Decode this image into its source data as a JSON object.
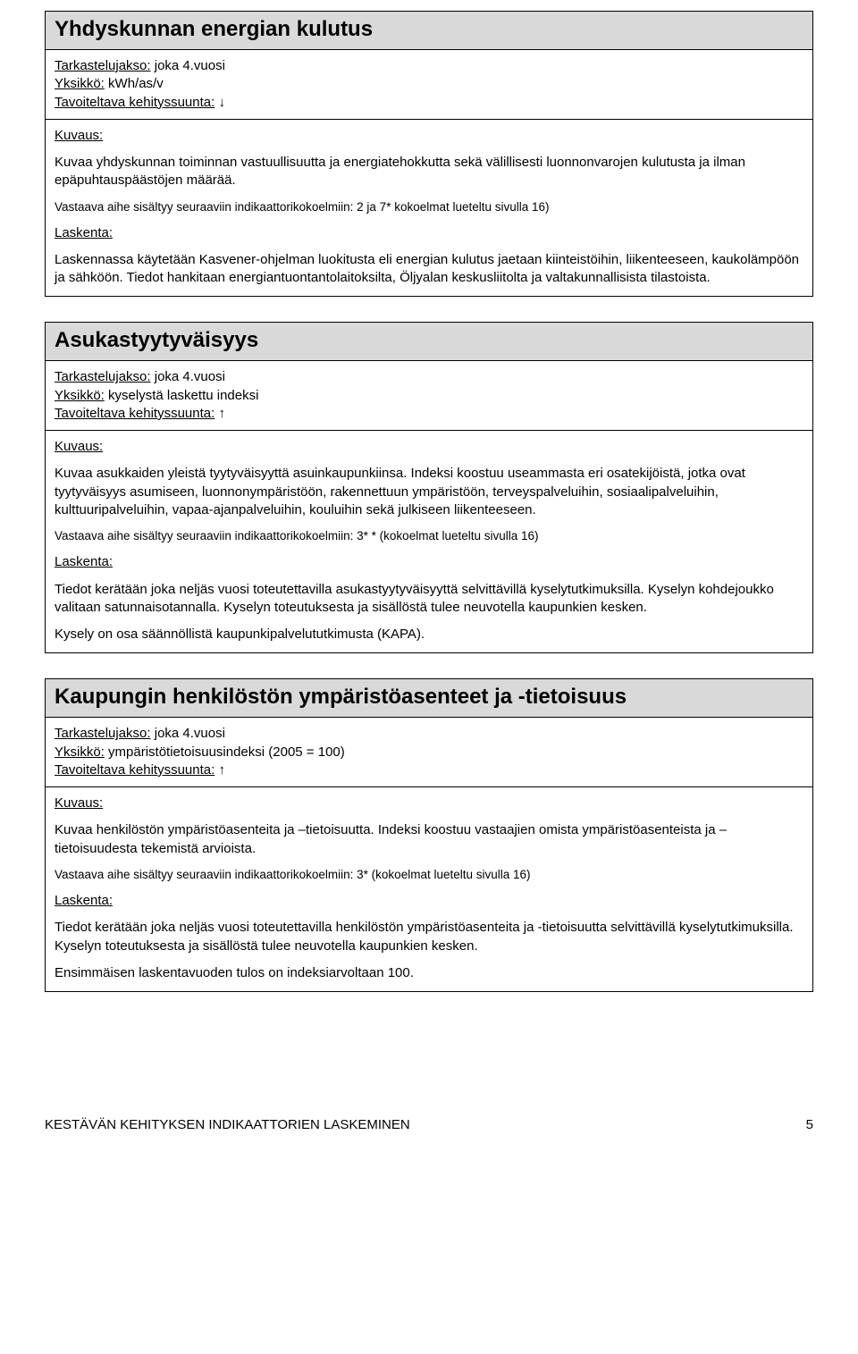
{
  "cards": [
    {
      "title": "Yhdyskunnan energian kulutus",
      "meta": {
        "period_label": "Tarkastelujakso:",
        "period_value": "joka 4.vuosi",
        "unit_label": "Yksikkö:",
        "unit_value": "kWh/as/v",
        "trend_label": "Tavoiteltava kehityssuunta:",
        "trend_arrow": "↓"
      },
      "body": {
        "desc_label": "Kuvaus:",
        "desc_text": "Kuvaa yhdyskunnan toiminnan vastuullisuutta ja energiatehokkutta sekä välillisesti luonnonvarojen kulutusta ja ilman epäpuhtauspäästöjen määrää.",
        "ref_text": "Vastaava aihe sisältyy seuraaviin indikaattorikokoelmiin: 2 ja 7* kokoelmat lueteltu sivulla 16)",
        "calc_label": "Laskenta:",
        "calc_text": "Laskennassa käytetään Kasvener-ohjelman luokitusta eli energian kulutus jaetaan kiinteistöihin, liikenteeseen, kaukolämpöön ja sähköön. Tiedot hankitaan energiantuontantolaitoksilta, Öljyalan keskusliitolta ja valtakunnallisista tilastoista."
      }
    },
    {
      "title": "Asukastyytyväisyys",
      "meta": {
        "period_label": "Tarkastelujakso:",
        "period_value": "joka 4.vuosi",
        "unit_label": "Yksikkö:",
        "unit_value": "kyselystä laskettu indeksi",
        "trend_label": "Tavoiteltava kehityssuunta:",
        "trend_arrow": "↑"
      },
      "body": {
        "desc_label": "Kuvaus:",
        "desc_text": "Kuvaa asukkaiden yleistä tyytyväisyyttä asuinkaupunkiinsa. Indeksi koostuu useammasta eri osatekijöistä, jotka ovat tyytyväisyys asumiseen, luonnonympäristöön, rakennettuun ympäristöön, terveyspalveluihin, sosiaalipalveluihin, kulttuuripalveluihin, vapaa-ajanpalveluihin, kouluihin sekä julkiseen liikenteeseen.",
        "ref_text": "Vastaava aihe sisältyy seuraaviin indikaattorikokoelmiin: 3* * (kokoelmat lueteltu sivulla 16)",
        "calc_label": "Laskenta:",
        "calc_text": "Tiedot kerätään joka neljäs vuosi toteutettavilla asukastyytyväisyyttä selvittävillä kyselytutkimuksilla. Kyselyn kohdejoukko valitaan satunnaisotannalla. Kyselyn toteutuksesta ja sisällöstä tulee neuvotella kaupunkien kesken.",
        "calc_text2": "Kysely on osa säännöllistä kaupunkipalvelututkimusta (KAPA)."
      }
    },
    {
      "title": "Kaupungin henkilöstön ympäristöasenteet ja -tietoisuus",
      "meta": {
        "period_label": "Tarkastelujakso:",
        "period_value": "joka 4.vuosi",
        "unit_label": "Yksikkö:",
        "unit_value": "ympäristötietoisuusindeksi (2005 = 100)",
        "trend_label": "Tavoiteltava kehityssuunta:",
        "trend_arrow": "↑"
      },
      "body": {
        "desc_label": "Kuvaus:",
        "desc_text": "Kuvaa henkilöstön ympäristöasenteita ja –tietoisuutta. Indeksi koostuu vastaajien omista ympäristöasenteista ja –tietoisuudesta tekemistä arvioista.",
        "ref_text": "Vastaava aihe sisältyy seuraaviin indikaattorikokoelmiin: 3* (kokoelmat lueteltu sivulla 16)",
        "calc_label": "Laskenta:",
        "calc_text": "Tiedot kerätään joka neljäs vuosi toteutettavilla henkilöstön ympäristöasenteita ja -tietoisuutta selvittävillä kyselytutkimuksilla. Kyselyn toteutuksesta ja sisällöstä tulee neuvotella kaupunkien kesken.",
        "calc_text2": "Ensimmäisen laskentavuoden tulos on indeksiarvoltaan 100."
      }
    }
  ],
  "footer": {
    "text": "KESTÄVÄN KEHITYKSEN INDIKAATTORIEN LASKEMINEN",
    "page": "5"
  }
}
